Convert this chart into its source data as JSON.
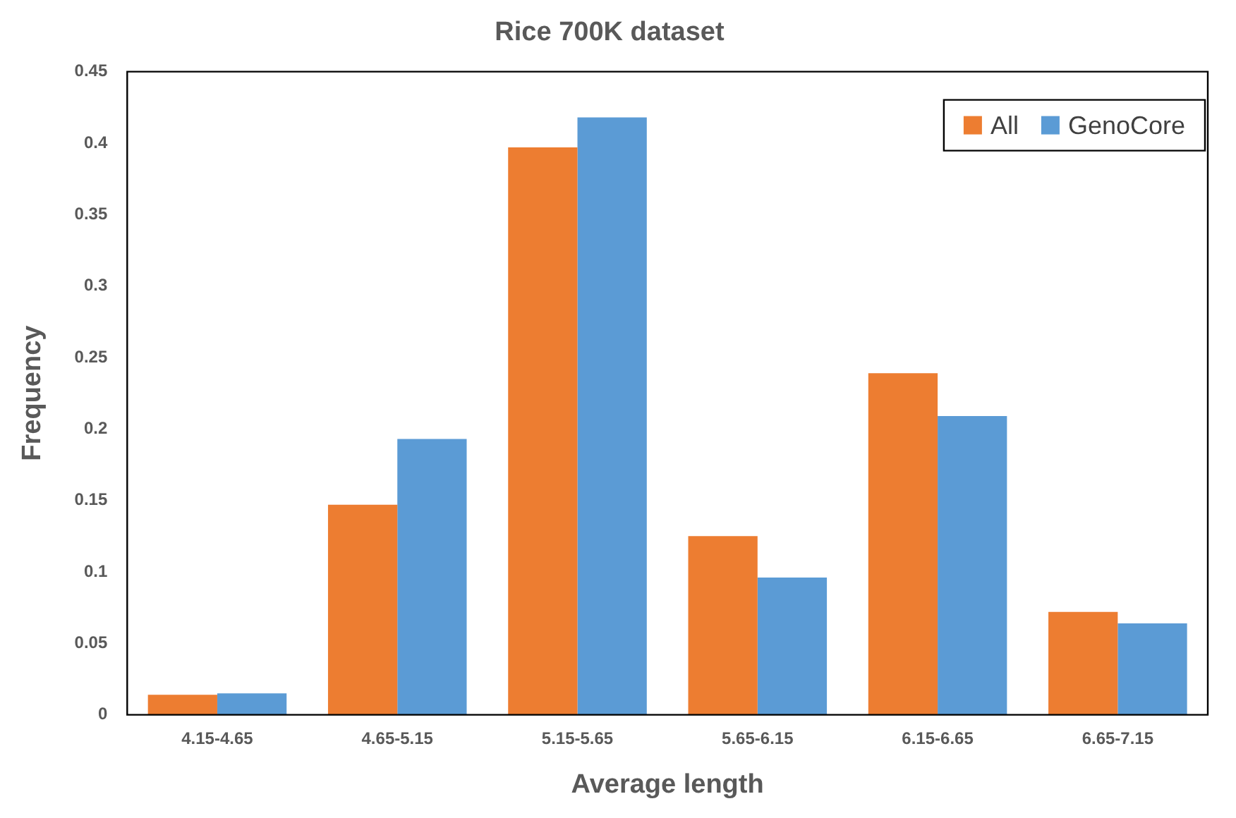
{
  "chart_data": {
    "type": "bar",
    "title": "Rice 700K dataset",
    "xlabel": "Average length",
    "ylabel": "Frequency",
    "categories": [
      "4.15-4.65",
      "4.65-5.15",
      "5.15-5.65",
      "5.65-6.15",
      "6.15-6.65",
      "6.65-7.15"
    ],
    "series": [
      {
        "name": "All",
        "color": "#ed7d31",
        "values": [
          0.014,
          0.147,
          0.397,
          0.125,
          0.239,
          0.072
        ]
      },
      {
        "name": "GenoCore",
        "color": "#5b9bd5",
        "values": [
          0.015,
          0.193,
          0.418,
          0.096,
          0.209,
          0.064
        ]
      }
    ],
    "ylim": [
      0,
      0.45
    ],
    "yticks": [
      0,
      0.05,
      0.1,
      0.15,
      0.2,
      0.25,
      0.3,
      0.35,
      0.4,
      0.45
    ],
    "grid": false,
    "legend": "top right"
  }
}
